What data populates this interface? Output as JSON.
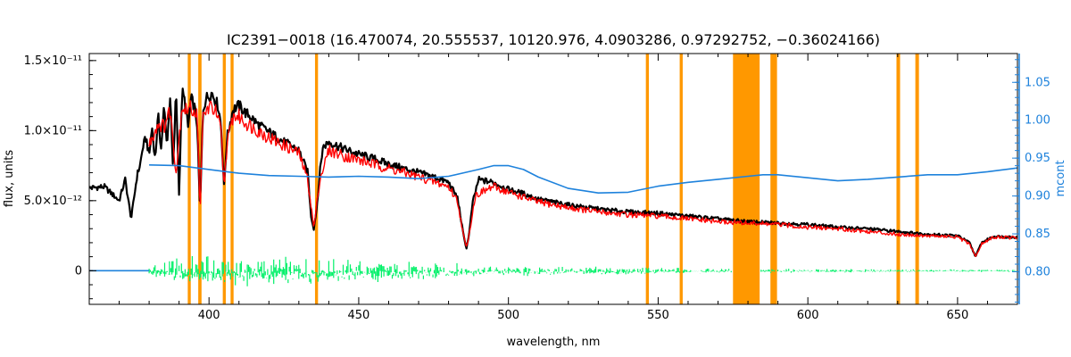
{
  "chart_data": {
    "type": "line",
    "title": "IC2391−0018    (16.470074, 20.555537, 10120.976, 4.0903286, 0.97292752, −0.36024166)",
    "xlabel": "wavelength, nm",
    "ylabel": "flux, units",
    "ylabel_right": "mcont",
    "xlim": [
      360,
      670
    ],
    "ylim": [
      -2.4e-12,
      1.55e-11
    ],
    "ylim_right": [
      0.757,
      1.088
    ],
    "grid": false,
    "x_ticks": [
      400,
      450,
      500,
      550,
      600,
      650
    ],
    "y_ticks": [
      {
        "value": 0,
        "label": "0"
      },
      {
        "value": 5e-12,
        "label": "5.0×10⁻¹²"
      },
      {
        "value": 1e-11,
        "label": "1.0×10⁻¹¹"
      },
      {
        "value": 1.5e-11,
        "label": "1.5×10⁻¹¹"
      }
    ],
    "y_right_ticks": [
      {
        "value": 0.8,
        "label": "0.80"
      },
      {
        "value": 0.85,
        "label": "0.85"
      },
      {
        "value": 0.9,
        "label": "0.90"
      },
      {
        "value": 0.95,
        "label": "0.95"
      },
      {
        "value": 1.0,
        "label": "1.00"
      },
      {
        "value": 1.05,
        "label": "1.05"
      }
    ],
    "masked_regions": [
      [
        392.9,
        393.9
      ],
      [
        396.4,
        397.5
      ],
      [
        404.6,
        405.6
      ],
      [
        407.2,
        408.2
      ],
      [
        435.4,
        436.4
      ],
      [
        545.9,
        546.9
      ],
      [
        557.2,
        558.2
      ],
      [
        575.0,
        583.9
      ],
      [
        587.5,
        589.7
      ],
      [
        629.6,
        630.8
      ],
      [
        635.9,
        637.1
      ]
    ],
    "series": [
      {
        "role": "observed",
        "color": "#000000",
        "x": [
          360,
          365,
          370,
          372,
          374,
          376,
          377,
          378,
          379,
          380,
          381,
          382,
          383,
          384,
          385,
          386,
          387,
          388,
          389,
          390,
          391,
          392,
          393,
          394,
          395,
          396,
          397,
          398,
          399,
          400,
          401,
          402,
          403,
          404,
          405,
          406,
          408,
          410,
          412,
          414,
          416,
          418,
          420,
          425,
          430,
          433,
          434,
          435,
          436,
          437,
          438,
          440,
          445,
          450,
          455,
          460,
          465,
          470,
          475,
          480,
          483,
          485,
          486,
          487,
          488,
          490,
          495,
          500,
          505,
          510,
          520,
          530,
          540,
          550,
          560,
          570,
          580,
          590,
          600,
          610,
          620,
          630,
          640,
          650,
          654,
          656,
          658,
          662,
          670
        ],
        "y": [
          5.9e-12,
          6e-12,
          5e-12,
          6.5e-12,
          3.7e-12,
          6.8e-12,
          7.6e-12,
          8.9e-12,
          9.5e-12,
          8.2e-12,
          1.02e-11,
          7.9e-12,
          1.11e-11,
          8.7e-12,
          1.17e-11,
          9e-12,
          1.25e-11,
          7e-12,
          1.3e-11,
          5.6e-12,
          1.28e-11,
          1.2e-11,
          1.02e-11,
          1.23e-11,
          1.18e-11,
          1.05e-11,
          4.3e-12,
          1.15e-11,
          1.23e-11,
          1.25e-11,
          1.27e-11,
          1.22e-11,
          1.18e-11,
          1.05e-11,
          6e-12,
          9.5e-12,
          1.15e-11,
          1.18e-11,
          1.13e-11,
          1.1e-11,
          1.05e-11,
          1.02e-11,
          9.9e-12,
          9.2e-12,
          8.6e-12,
          7e-12,
          4e-12,
          3e-12,
          4.5e-12,
          7e-12,
          8.8e-12,
          9.2e-12,
          8.7e-12,
          8.3e-12,
          8e-12,
          7.6e-12,
          7.3e-12,
          7e-12,
          6.7e-12,
          6.3e-12,
          5.2e-12,
          2.5e-12,
          1.6e-12,
          2.8e-12,
          4.8e-12,
          6.5e-12,
          6.3e-12,
          5.8e-12,
          5.5e-12,
          5.1e-12,
          4.7e-12,
          4.4e-12,
          4.2e-12,
          4.1e-12,
          3.9e-12,
          3.7e-12,
          3.5e-12,
          3.4e-12,
          3.3e-12,
          3.1e-12,
          3e-12,
          2.8e-12,
          2.6e-12,
          2.5e-12,
          2e-12,
          1e-12,
          2e-12,
          2.45e-12,
          2.4e-12
        ]
      },
      {
        "role": "model",
        "color": "#ff0000",
        "x": [
          380,
          383,
          385,
          387,
          389,
          391,
          392,
          394,
          396,
          397,
          398,
          400,
          402,
          404,
          405,
          406,
          408,
          410,
          412,
          420,
          430,
          433,
          435,
          437,
          440,
          445,
          450,
          460,
          470,
          480,
          483,
          485,
          486,
          487,
          489,
          495,
          500,
          510,
          520,
          530,
          540,
          550,
          560,
          570,
          580,
          590,
          600,
          610,
          620,
          630,
          640,
          650,
          654,
          656,
          658,
          662,
          670
        ],
        "y": [
          9e-12,
          1.05e-11,
          1.03e-11,
          1.15e-11,
          7e-12,
          1.18e-11,
          1.15e-11,
          1.16e-11,
          1.12e-11,
          4.3e-12,
          1.1e-11,
          1.17e-11,
          1.15e-11,
          1e-11,
          6e-12,
          9e-12,
          1.1e-11,
          1.1e-11,
          1.06e-11,
          9.5e-12,
          8.4e-12,
          6.5e-12,
          3e-12,
          6.5e-12,
          8.6e-12,
          8.2e-12,
          7.9e-12,
          7.3e-12,
          6.7e-12,
          6e-12,
          5e-12,
          2.5e-12,
          1.6e-12,
          2.8e-12,
          5.4e-12,
          6e-12,
          5.6e-12,
          4.9e-12,
          4.5e-12,
          4.2e-12,
          4e-12,
          3.9e-12,
          3.7e-12,
          3.5e-12,
          3.4e-12,
          3.3e-12,
          3.1e-12,
          3e-12,
          2.8e-12,
          2.6e-12,
          2.5e-12,
          2.4e-12,
          1.9e-12,
          1e-12,
          1.9e-12,
          2.4e-12,
          2.35e-12
        ]
      },
      {
        "role": "continuum",
        "color": "#1e82dc",
        "axis": "right",
        "x": [
          380,
          390,
          400,
          410,
          420,
          430,
          440,
          450,
          460,
          470,
          480,
          490,
          495,
          500,
          505,
          510,
          520,
          530,
          540,
          550,
          560,
          570,
          580,
          585,
          590,
          600,
          610,
          620,
          630,
          640,
          650,
          660,
          670
        ],
        "y": [
          0.941,
          0.94,
          0.935,
          0.93,
          0.927,
          0.926,
          0.925,
          0.926,
          0.925,
          0.923,
          0.926,
          0.935,
          0.94,
          0.94,
          0.935,
          0.925,
          0.91,
          0.904,
          0.905,
          0.913,
          0.918,
          0.922,
          0.926,
          0.928,
          0.928,
          0.924,
          0.92,
          0.922,
          0.925,
          0.928,
          0.928,
          0.932,
          0.937
        ]
      },
      {
        "role": "residual-baseline",
        "color": "#1e82dc",
        "x": [
          360,
          380
        ],
        "y": [
          0,
          0
        ]
      }
    ],
    "residuals": {
      "color": "#00f068",
      "envelope": [
        {
          "x": 380,
          "amp": 7e-13
        },
        {
          "x": 390,
          "amp": 1.1e-12
        },
        {
          "x": 400,
          "amp": 1.3e-12
        },
        {
          "x": 420,
          "amp": 1.2e-12
        },
        {
          "x": 440,
          "amp": 1e-12
        },
        {
          "x": 460,
          "amp": 8e-13
        },
        {
          "x": 480,
          "amp": 6e-13
        },
        {
          "x": 500,
          "amp": 4e-13
        },
        {
          "x": 540,
          "amp": 3e-13
        },
        {
          "x": 575,
          "amp": 2e-13
        },
        {
          "x": 590,
          "amp": 1.5e-13
        },
        {
          "x": 630,
          "amp": 1.2e-13
        },
        {
          "x": 670,
          "amp": 1e-13
        }
      ]
    }
  }
}
